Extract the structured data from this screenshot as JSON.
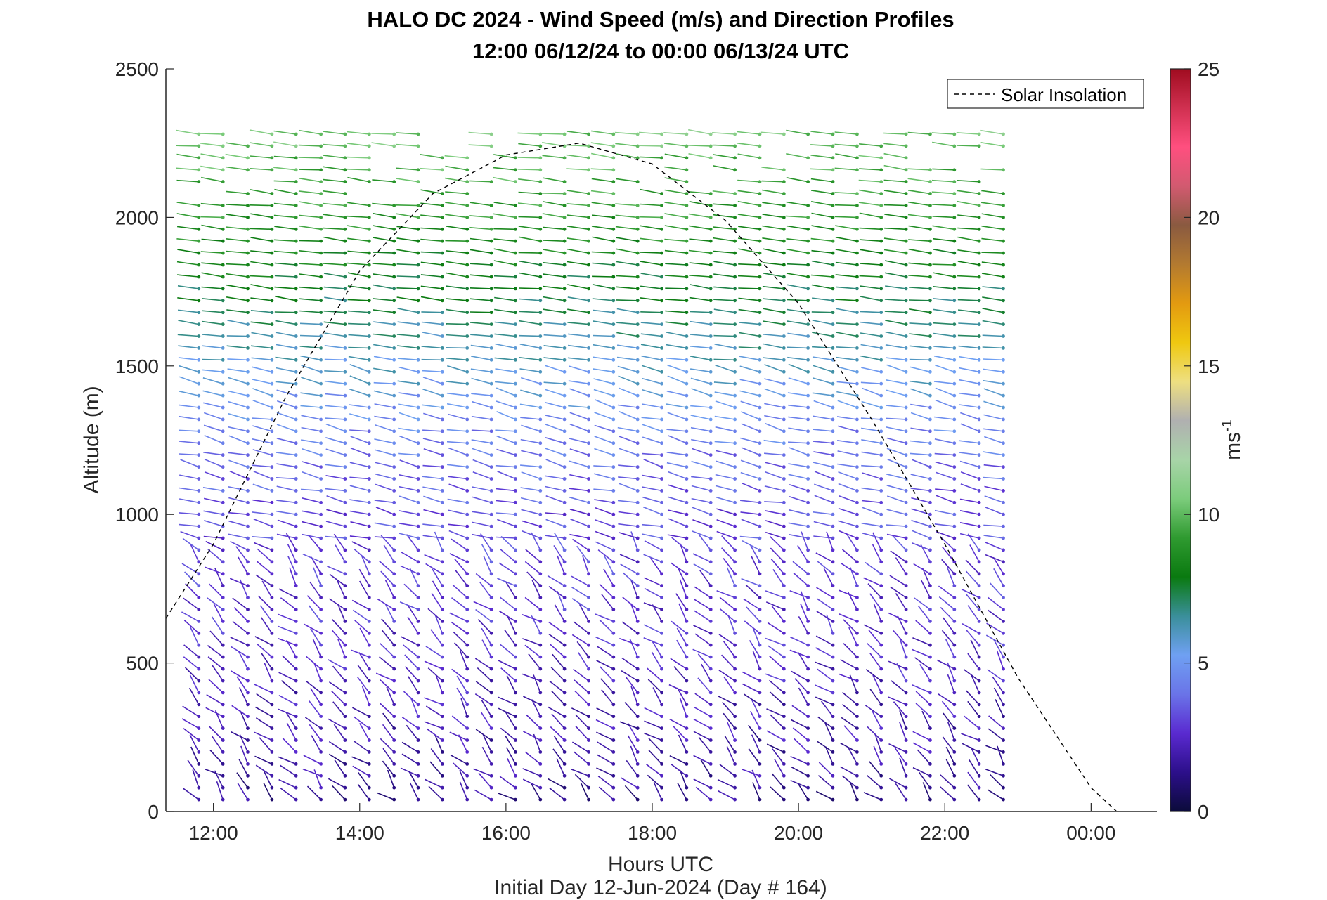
{
  "chart_data": {
    "type": "wind-barb-profile",
    "title": "HALO DC 2024 - Wind Speed (m/s) and Direction Profiles",
    "subtitle": "12:00 06/12/24 to 00:00 06/13/24  UTC",
    "xlabel": "Hours UTC",
    "ylabel": "Altitude (m)",
    "footer": "Initial Day 12-Jun-2024 (Day # 164)",
    "xlim_hours": [
      11.35,
      24.9
    ],
    "ylim": [
      0,
      2500
    ],
    "x_tick_hours": [
      12,
      14,
      16,
      18,
      20,
      22,
      24
    ],
    "x_tick_labels": [
      "12:00",
      "14:00",
      "16:00",
      "18:00",
      "20:00",
      "22:00",
      "00:00"
    ],
    "y_ticks": [
      0,
      500,
      1000,
      1500,
      2000,
      2500
    ],
    "colorbar": {
      "label": "ms",
      "label_exponent": "-1",
      "range": [
        0,
        25
      ],
      "ticks": [
        0,
        5,
        10,
        15,
        20,
        25
      ],
      "colors": [
        "#0b0b3a",
        "#2c0f8a",
        "#5a2ad0",
        "#6a74e8",
        "#6fa0f2",
        "#3a8f9a",
        "#0a7a10",
        "#2f9a30",
        "#7ccc7c",
        "#a8d4a8",
        "#b0b0b0",
        "#eedf80",
        "#efc810",
        "#e39a10",
        "#b37a30",
        "#8a5a40",
        "#d25a70",
        "#ff4f7f",
        "#d03050",
        "#a00c20"
      ]
    },
    "legend": {
      "entries": [
        "Solar Insolation"
      ],
      "placement": "top-right"
    },
    "solar_insolation": {
      "style": "dashed",
      "x_hours": [
        11.35,
        12.0,
        13.0,
        14.0,
        15.0,
        16.0,
        17.0,
        18.0,
        19.0,
        20.0,
        21.0,
        22.0,
        23.0,
        24.0,
        24.35,
        24.9
      ],
      "y_m": [
        650,
        900,
        1400,
        1820,
        2080,
        2210,
        2250,
        2180,
        1990,
        1710,
        1320,
        900,
        450,
        80,
        0,
        0
      ]
    },
    "profile_times_hours": [
      11.8,
      12.13,
      12.47,
      12.8,
      13.13,
      13.47,
      13.8,
      14.13,
      14.47,
      14.8,
      15.13,
      15.47,
      15.8,
      16.13,
      16.47,
      16.8,
      17.13,
      17.47,
      17.8,
      18.13,
      18.47,
      18.8,
      19.13,
      19.47,
      19.8,
      20.13,
      20.47,
      20.8,
      21.13,
      21.47,
      21.8,
      22.13,
      22.47,
      22.8
    ],
    "barb_level_spacing_m": 40,
    "barb_top_m": 2280,
    "speed_by_altitude_m_s": [
      {
        "alt_m": 0,
        "speed": 1.5
      },
      {
        "alt_m": 500,
        "speed": 2.5
      },
      {
        "alt_m": 1000,
        "speed": 3.2
      },
      {
        "alt_m": 1300,
        "speed": 4.5
      },
      {
        "alt_m": 1600,
        "speed": 6.5
      },
      {
        "alt_m": 1900,
        "speed": 8.5
      },
      {
        "alt_m": 2300,
        "speed": 10.5
      }
    ]
  }
}
